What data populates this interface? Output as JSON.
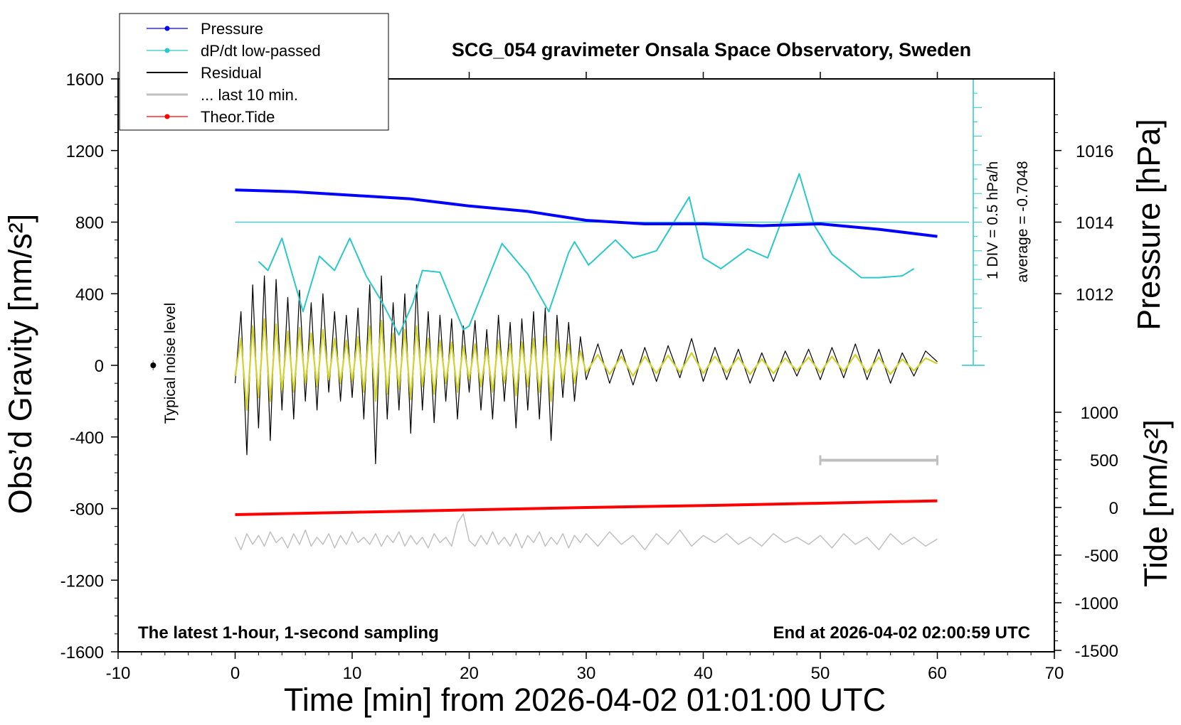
{
  "chart_data": {
    "type": "line",
    "title": "SCG_054 gravimeter Onsala Space Observatory, Sweden",
    "xlabel": "Time [min] from 2026-04-02 01:01:00 UTC",
    "ylabel": "Obs’d Gravity [nm/s²]",
    "xlim": [
      -10,
      70
    ],
    "ylim": [
      -1600,
      1600
    ],
    "x_ticks": [
      "-10",
      "0",
      "10",
      "20",
      "30",
      "40",
      "50",
      "60",
      "70"
    ],
    "y_ticks": [
      "1600",
      "1200",
      "800",
      "400",
      "0",
      "-400",
      "-800",
      "-1200",
      "-1600"
    ],
    "pressure_axis": {
      "label": "Pressure [hPa]",
      "ticks": [
        "1016",
        "1014",
        "1012"
      ],
      "tick_values": [
        1016,
        1014,
        1012
      ]
    },
    "tide_axis": {
      "label": "Tide [nm/s²]",
      "ticks": [
        "1000",
        "500",
        "0",
        "-500",
        "-1000",
        "-1500"
      ],
      "tick_values": [
        1000,
        500,
        0,
        -500,
        -1000,
        -1500
      ]
    },
    "dpdt_scale": {
      "div_label": "1 DIV = 0.5 hPa/h",
      "avg_label": "average = -0.7048"
    },
    "noise_label": "Typical noise level",
    "footer_left": "The latest 1-hour, 1-second sampling",
    "footer_right": "End at 2026-04-02 02:00:59 UTC",
    "legend": [
      {
        "label": "Pressure",
        "color": "#0000ff",
        "marker": "dot"
      },
      {
        "label": "dP/dt low-passed",
        "color": "#2ac8c8",
        "marker": "dot"
      },
      {
        "label": "Residual",
        "color": "#000000",
        "marker": "line"
      },
      {
        "label": "... last 10 min.",
        "color": "#c0c0c0",
        "marker": "line"
      },
      {
        "label": "Theor.Tide",
        "color": "#ff0000",
        "marker": "dot"
      }
    ],
    "series": [
      {
        "name": "Pressure",
        "unit": "hPa",
        "color": "#0000ff",
        "x": [
          0,
          5,
          10,
          15,
          20,
          25,
          30,
          35,
          40,
          45,
          50,
          55,
          60
        ],
        "values": [
          1014.9,
          1014.85,
          1014.75,
          1014.65,
          1014.45,
          1014.3,
          1014.05,
          1013.95,
          1013.95,
          1013.9,
          1013.95,
          1013.8,
          1013.6
        ]
      },
      {
        "name": "dP/dt low-passed",
        "unit": "gravity-axis equivalent",
        "color": "#2ac8c8",
        "x": [
          2,
          2.8,
          4,
          5.8,
          7.2,
          8.5,
          9.8,
          11.2,
          12.5,
          14,
          15.2,
          16,
          17.5,
          19.5,
          20,
          22.8,
          25,
          26.8,
          28.5,
          29,
          30.2,
          32.5,
          34,
          36,
          38.8,
          40,
          41.5,
          43.8,
          45.5,
          48.2,
          49.5,
          51,
          53.5,
          55,
          57,
          58
        ],
        "values": [
          580,
          530,
          710,
          300,
          610,
          530,
          710,
          500,
          360,
          170,
          350,
          530,
          520,
          200,
          220,
          680,
          510,
          300,
          630,
          690,
          560,
          700,
          600,
          640,
          940,
          600,
          540,
          650,
          600,
          1070,
          780,
          620,
          490,
          490,
          500,
          540
        ]
      },
      {
        "name": "Residual",
        "unit": "nm/s²",
        "color": "#000000",
        "x": [
          0,
          0.5,
          1,
          1.5,
          2,
          2.5,
          3,
          3.5,
          4,
          4.5,
          5,
          5.5,
          6,
          6.5,
          7,
          7.5,
          8,
          8.5,
          9,
          9.5,
          10,
          10.5,
          11,
          11.5,
          12,
          12.5,
          13,
          13.5,
          14,
          14.5,
          15,
          15.5,
          16,
          16.5,
          17,
          17.5,
          18,
          18.5,
          19,
          19.5,
          20,
          20.5,
          21,
          21.5,
          22,
          22.5,
          23,
          23.5,
          24,
          24.5,
          25,
          25.5,
          26,
          26.5,
          27,
          27.5,
          28,
          28.5,
          29,
          29.5,
          30,
          31,
          32,
          33,
          34,
          35,
          36,
          37,
          38,
          39,
          40,
          41,
          42,
          43,
          44,
          45,
          46,
          47,
          48,
          49,
          50,
          51,
          52,
          53,
          54,
          55,
          56,
          57,
          58,
          59,
          60
        ],
        "values": [
          -100,
          300,
          -500,
          450,
          -350,
          500,
          -420,
          480,
          -250,
          380,
          -300,
          420,
          -200,
          350,
          -250,
          400,
          -150,
          300,
          -200,
          280,
          -180,
          320,
          -300,
          450,
          -550,
          500,
          -300,
          350,
          -250,
          400,
          -380,
          450,
          -250,
          300,
          -320,
          280,
          -200,
          260,
          -300,
          220,
          -150,
          250,
          -250,
          200,
          -300,
          280,
          -200,
          240,
          -350,
          260,
          -250,
          300,
          -300,
          320,
          -420,
          280,
          -180,
          240,
          -200,
          160,
          -80,
          120,
          -100,
          90,
          -110,
          100,
          -90,
          110,
          -70,
          150,
          -90,
          100,
          -80,
          90,
          -100,
          70,
          -90,
          80,
          -60,
          90,
          -80,
          100,
          -70,
          120,
          -80,
          90,
          -100,
          70,
          -60,
          80,
          20
        ]
      },
      {
        "name": "... last 10 min.",
        "unit": "nm/s²",
        "color": "#c0c0c0",
        "x": [
          0,
          0.5,
          1,
          1.5,
          2,
          2.5,
          3,
          3.5,
          4,
          4.5,
          5,
          5.5,
          6,
          6.5,
          7,
          7.5,
          8,
          8.5,
          9,
          9.5,
          10,
          10.5,
          11,
          11.5,
          12,
          12.5,
          13,
          13.5,
          14,
          14.5,
          15,
          15.5,
          16,
          16.5,
          17,
          17.5,
          18,
          18.5,
          19,
          19.5,
          20,
          20.5,
          21,
          21.5,
          22,
          22.5,
          23,
          23.5,
          24,
          24.5,
          25,
          25.5,
          26,
          26.5,
          27,
          27.5,
          28,
          28.5,
          29,
          29.5,
          30,
          31,
          32,
          33,
          34,
          35,
          36,
          37,
          38,
          39,
          40,
          41,
          42,
          43,
          44,
          45,
          46,
          47,
          48,
          49,
          50,
          51,
          52,
          53,
          54,
          55,
          56,
          57,
          58,
          59,
          60
        ],
        "values": [
          -960,
          -1030,
          -940,
          -1000,
          -950,
          -1010,
          -930,
          -990,
          -960,
          -1020,
          -940,
          -1000,
          -920,
          -1010,
          -960,
          -1000,
          -940,
          -1020,
          -950,
          -1000,
          -930,
          -990,
          -960,
          -1000,
          -940,
          -1010,
          -950,
          -990,
          -930,
          -1010,
          -950,
          -1000,
          -960,
          -1020,
          -940,
          -990,
          -960,
          -1010,
          -880,
          -830,
          -980,
          -1010,
          -950,
          -1000,
          -930,
          -1000,
          -960,
          -1010,
          -940,
          -1020,
          -950,
          -990,
          -930,
          -1010,
          -960,
          -1000,
          -940,
          -1020,
          -950,
          -990,
          -940,
          -1010,
          -930,
          -1000,
          -950,
          -1030,
          -940,
          -1000,
          -920,
          -1010,
          -950,
          -990,
          -940,
          -1000,
          -960,
          -1010,
          -940,
          -990,
          -960,
          -1000,
          -950,
          -1020,
          -940,
          -1000,
          -960,
          -1030,
          -940,
          -1000,
          -960,
          -1010,
          -970
        ]
      },
      {
        "name": "Theor.Tide",
        "unit": "nm/s²",
        "color": "#ff0000",
        "x": [
          0,
          10,
          20,
          30,
          40,
          50,
          60
        ],
        "values": [
          -75,
          -50,
          -25,
          0,
          20,
          45,
          70
        ]
      },
      {
        "name": "Filtered residual",
        "unit": "nm/s²",
        "color": "#d2d22c",
        "x": [
          0,
          0.5,
          1,
          1.5,
          2,
          2.5,
          3,
          3.5,
          4,
          4.5,
          5,
          5.5,
          6,
          6.5,
          7,
          7.5,
          8,
          8.5,
          9,
          9.5,
          10,
          10.5,
          11,
          11.5,
          12,
          12.5,
          13,
          13.5,
          14,
          14.5,
          15,
          15.5,
          16,
          16.5,
          17,
          17.5,
          18,
          18.5,
          19,
          19.5,
          20,
          20.5,
          21,
          21.5,
          22,
          22.5,
          23,
          23.5,
          24,
          24.5,
          25,
          25.5,
          26,
          26.5,
          27,
          27.5,
          28,
          28.5,
          29,
          29.5,
          30,
          31,
          32,
          33,
          34,
          35,
          36,
          37,
          38,
          39,
          40,
          41,
          42,
          43,
          44,
          45,
          46,
          47,
          48,
          49,
          50,
          51,
          52,
          53,
          54,
          55,
          56,
          57,
          58,
          59,
          60
        ],
        "values": [
          -60,
          150,
          -250,
          220,
          -180,
          260,
          -200,
          230,
          -140,
          190,
          -150,
          210,
          -100,
          180,
          -120,
          200,
          -80,
          150,
          -100,
          140,
          -90,
          160,
          -150,
          220,
          -200,
          250,
          -160,
          180,
          -130,
          200,
          -190,
          220,
          -120,
          150,
          -160,
          140,
          -100,
          130,
          -150,
          110,
          -80,
          120,
          -120,
          100,
          -150,
          140,
          -100,
          120,
          -170,
          130,
          -120,
          150,
          -150,
          160,
          -200,
          140,
          -90,
          120,
          -100,
          80,
          -40,
          60,
          -50,
          50,
          -60,
          50,
          -45,
          55,
          -40,
          70,
          -45,
          50,
          -40,
          45,
          -50,
          35,
          -45,
          40,
          -30,
          45,
          -40,
          50,
          -35,
          60,
          -40,
          45,
          -50,
          35,
          -30,
          40,
          10
        ]
      }
    ],
    "noise_marker": {
      "x": -7,
      "y": 0
    },
    "window_bar": {
      "x1": 50,
      "x2": 60,
      "y": -530
    }
  }
}
